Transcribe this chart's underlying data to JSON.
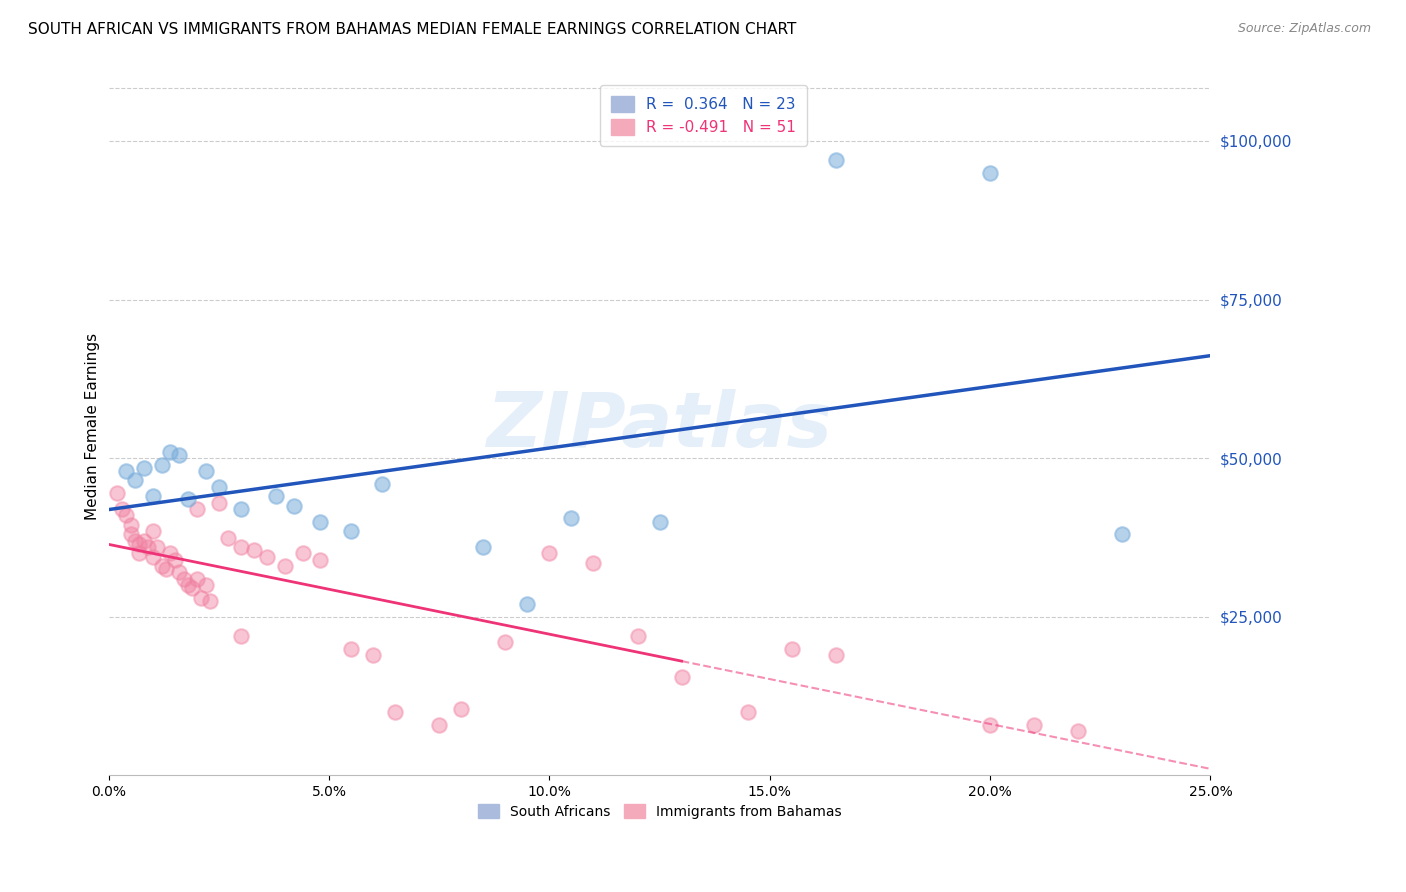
{
  "title": "SOUTH AFRICAN VS IMMIGRANTS FROM BAHAMAS MEDIAN FEMALE EARNINGS CORRELATION CHART",
  "source": "Source: ZipAtlas.com",
  "ylabel": "Median Female Earnings",
  "ytick_labels": [
    "$25,000",
    "$50,000",
    "$75,000",
    "$100,000"
  ],
  "ytick_values": [
    25000,
    50000,
    75000,
    100000
  ],
  "xlim": [
    0.0,
    0.25
  ],
  "ylim": [
    0,
    110000
  ],
  "xtick_positions": [
    0.0,
    0.05,
    0.1,
    0.15,
    0.2,
    0.25
  ],
  "xtick_labels": [
    "0.0%",
    "5.0%",
    "10.0%",
    "15.0%",
    "20.0%",
    "25.0%"
  ],
  "legend_r_blue": "R =  0.364",
  "legend_n_blue": "N = 23",
  "legend_r_pink": "R = -0.491",
  "legend_n_pink": "N = 51",
  "legend_label_blue": "South Africans",
  "legend_label_pink": "Immigrants from Bahamas",
  "blue_scatter_color": "#7aaddb",
  "pink_scatter_color": "#f080a0",
  "blue_line_color": "#2255bb",
  "pink_line_color": "#ee3377",
  "blue_scatter_x": [
    0.004,
    0.006,
    0.008,
    0.01,
    0.012,
    0.014,
    0.016,
    0.018,
    0.022,
    0.025,
    0.03,
    0.038,
    0.042,
    0.048,
    0.055,
    0.062,
    0.085,
    0.095,
    0.105,
    0.165,
    0.2,
    0.23,
    0.125
  ],
  "blue_scatter_y": [
    48000,
    46500,
    48500,
    44000,
    49000,
    51000,
    50500,
    43500,
    48000,
    45500,
    42000,
    44000,
    42500,
    40000,
    38500,
    46000,
    36000,
    27000,
    40500,
    97000,
    95000,
    38000,
    40000
  ],
  "pink_scatter_x": [
    0.002,
    0.003,
    0.004,
    0.005,
    0.005,
    0.006,
    0.007,
    0.007,
    0.008,
    0.009,
    0.01,
    0.01,
    0.011,
    0.012,
    0.013,
    0.014,
    0.015,
    0.016,
    0.017,
    0.018,
    0.019,
    0.02,
    0.021,
    0.022,
    0.023,
    0.025,
    0.027,
    0.03,
    0.033,
    0.036,
    0.04,
    0.044,
    0.048,
    0.055,
    0.06,
    0.065,
    0.075,
    0.08,
    0.09,
    0.1,
    0.11,
    0.12,
    0.13,
    0.145,
    0.155,
    0.165,
    0.2,
    0.21,
    0.22,
    0.03,
    0.02
  ],
  "pink_scatter_y": [
    44500,
    42000,
    41000,
    39500,
    38000,
    37000,
    36500,
    35000,
    37000,
    36000,
    38500,
    34500,
    36000,
    33000,
    32500,
    35000,
    34000,
    32000,
    31000,
    30000,
    29500,
    31000,
    28000,
    30000,
    27500,
    43000,
    37500,
    36000,
    35500,
    34500,
    33000,
    35000,
    34000,
    20000,
    19000,
    10000,
    8000,
    10500,
    21000,
    35000,
    33500,
    22000,
    15500,
    10000,
    20000,
    19000,
    8000,
    8000,
    7000,
    22000,
    42000
  ],
  "watermark_text": "ZIPatlas",
  "background_color": "#ffffff",
  "grid_color": "#cccccc",
  "title_fontsize": 11,
  "source_fontsize": 9,
  "axis_label_fontsize": 10,
  "tick_fontsize": 10,
  "legend_fontsize": 11
}
